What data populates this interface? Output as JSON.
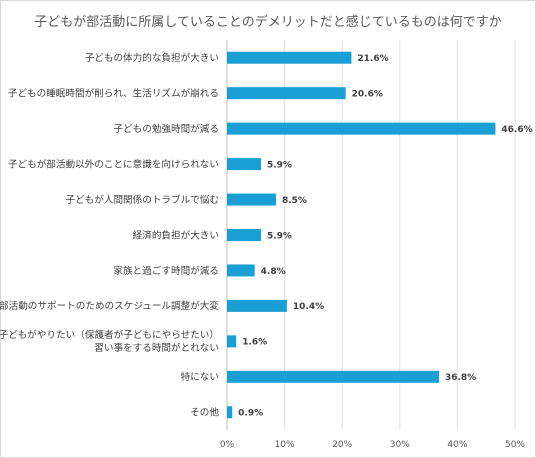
{
  "chart_data": {
    "type": "bar",
    "orientation": "horizontal",
    "title": "子どもが部活動に所属していることのデメリットだと感じているものは何ですか",
    "categories": [
      [
        "子どもの体力的な負担が大きい"
      ],
      [
        "子どもの睡眠時間が削られ、生活リズムが崩れる"
      ],
      [
        "子どもの勉強時間が減る"
      ],
      [
        "子どもが部活動以外のことに意識を向けられない"
      ],
      [
        "子どもが人間関係のトラブルで悩む"
      ],
      [
        "経済的負担が大きい"
      ],
      [
        "家族と過ごす時間が減る"
      ],
      [
        "部活動のサポートのためのスケジュール調整が大変"
      ],
      [
        "子どもがやりたい（保護者が子どもにやらせたい）",
        "習い事をする時間がとれない"
      ],
      [
        "特にない"
      ],
      [
        "その他"
      ]
    ],
    "values": [
      21.6,
      20.6,
      46.6,
      5.9,
      8.5,
      5.9,
      4.8,
      10.4,
      1.6,
      36.8,
      0.9
    ],
    "value_labels": [
      "21.6%",
      "20.6%",
      "46.6%",
      "5.9%",
      "8.5%",
      "5.9%",
      "4.8%",
      "10.4%",
      "1.6%",
      "36.8%",
      "0.9%"
    ],
    "xlim": [
      0,
      50
    ],
    "xticks": [
      0,
      10,
      20,
      30,
      40,
      50
    ],
    "xtick_labels": [
      "0%",
      "10%",
      "20%",
      "30%",
      "40%",
      "50%"
    ],
    "bar_color": "#1a9fd4",
    "grid": "vertical",
    "legend": "none"
  }
}
